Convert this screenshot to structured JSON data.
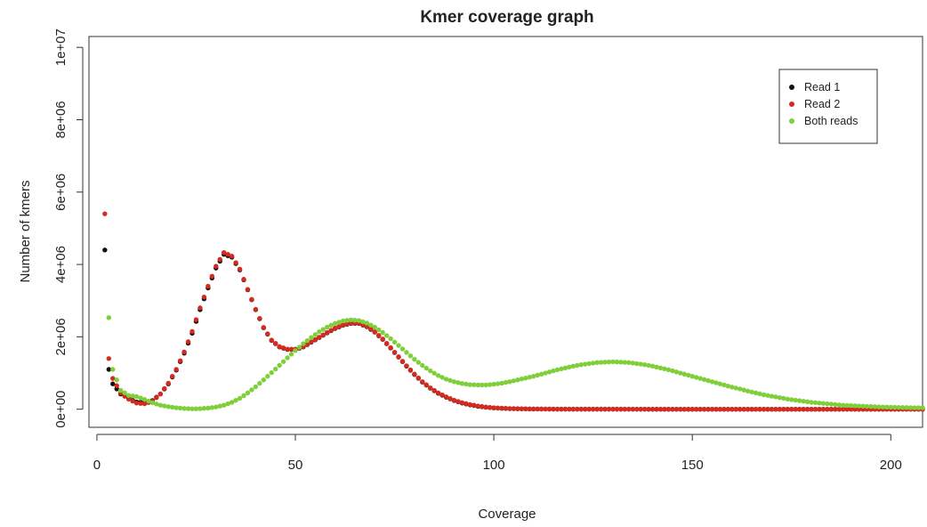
{
  "chart_data": {
    "type": "scatter",
    "title": "Kmer coverage graph",
    "xlabel": "Coverage",
    "ylabel": "Number of kmers",
    "xlim": [
      -2,
      208
    ],
    "ylim": [
      -500000,
      10300000
    ],
    "x_ticks": [
      0,
      50,
      100,
      150,
      200
    ],
    "x_tick_labels": [
      "0",
      "50",
      "100",
      "150",
      "200"
    ],
    "y_ticks": [
      0,
      2000000,
      4000000,
      6000000,
      8000000,
      10000000
    ],
    "y_tick_labels": [
      "0e+00",
      "2e+06",
      "4e+06",
      "6e+06",
      "8e+06",
      "1e+07"
    ],
    "grid": false,
    "legend_position": "top-right",
    "x_range": [
      2,
      208
    ],
    "series": [
      {
        "name": "Read 1",
        "color": "#111111",
        "points": [
          [
            2,
            4400000
          ],
          [
            3,
            1100000
          ],
          [
            4,
            700000
          ],
          [
            6,
            420000
          ],
          [
            8,
            300000
          ],
          [
            10,
            200000
          ],
          [
            12,
            180000
          ],
          [
            14,
            240000
          ],
          [
            16,
            420000
          ],
          [
            18,
            700000
          ],
          [
            20,
            1080000
          ],
          [
            22,
            1550000
          ],
          [
            24,
            2100000
          ],
          [
            26,
            2750000
          ],
          [
            28,
            3350000
          ],
          [
            30,
            3900000
          ],
          [
            32,
            4280000
          ],
          [
            34,
            4200000
          ],
          [
            36,
            3850000
          ],
          [
            38,
            3300000
          ],
          [
            40,
            2750000
          ],
          [
            42,
            2250000
          ],
          [
            44,
            1900000
          ],
          [
            46,
            1720000
          ],
          [
            48,
            1650000
          ],
          [
            50,
            1650000
          ],
          [
            52,
            1720000
          ],
          [
            54,
            1850000
          ],
          [
            56,
            1980000
          ],
          [
            58,
            2110000
          ],
          [
            60,
            2230000
          ],
          [
            62,
            2320000
          ],
          [
            64,
            2370000
          ],
          [
            66,
            2370000
          ],
          [
            68,
            2280000
          ],
          [
            70,
            2130000
          ],
          [
            72,
            1930000
          ],
          [
            74,
            1690000
          ],
          [
            76,
            1440000
          ],
          [
            78,
            1190000
          ],
          [
            80,
            960000
          ],
          [
            82,
            750000
          ],
          [
            84,
            580000
          ],
          [
            86,
            440000
          ],
          [
            88,
            330000
          ],
          [
            90,
            240000
          ],
          [
            92,
            170000
          ],
          [
            94,
            120000
          ],
          [
            96,
            80000
          ],
          [
            98,
            55000
          ],
          [
            100,
            35000
          ],
          [
            104,
            15000
          ],
          [
            110,
            5000
          ],
          [
            120,
            1500
          ],
          [
            140,
            500
          ],
          [
            160,
            300
          ],
          [
            180,
            200
          ],
          [
            200,
            100
          ],
          [
            208,
            100
          ]
        ]
      },
      {
        "name": "Read 2",
        "color": "#d42a20",
        "points": [
          [
            2,
            5400000
          ],
          [
            3,
            1400000
          ],
          [
            4,
            850000
          ],
          [
            6,
            450000
          ],
          [
            8,
            280000
          ],
          [
            10,
            170000
          ],
          [
            12,
            150000
          ],
          [
            14,
            220000
          ],
          [
            16,
            420000
          ],
          [
            18,
            720000
          ],
          [
            20,
            1100000
          ],
          [
            22,
            1580000
          ],
          [
            24,
            2150000
          ],
          [
            26,
            2800000
          ],
          [
            28,
            3400000
          ],
          [
            30,
            3950000
          ],
          [
            32,
            4330000
          ],
          [
            34,
            4230000
          ],
          [
            36,
            3870000
          ],
          [
            38,
            3310000
          ],
          [
            40,
            2760000
          ],
          [
            42,
            2260000
          ],
          [
            44,
            1910000
          ],
          [
            46,
            1730000
          ],
          [
            48,
            1660000
          ],
          [
            50,
            1660000
          ],
          [
            52,
            1730000
          ],
          [
            54,
            1860000
          ],
          [
            56,
            1990000
          ],
          [
            58,
            2120000
          ],
          [
            60,
            2240000
          ],
          [
            62,
            2330000
          ],
          [
            64,
            2380000
          ],
          [
            66,
            2380000
          ],
          [
            68,
            2290000
          ],
          [
            70,
            2140000
          ],
          [
            72,
            1940000
          ],
          [
            74,
            1700000
          ],
          [
            76,
            1450000
          ],
          [
            78,
            1200000
          ],
          [
            80,
            970000
          ],
          [
            82,
            760000
          ],
          [
            84,
            590000
          ],
          [
            86,
            450000
          ],
          [
            88,
            340000
          ],
          [
            90,
            250000
          ],
          [
            92,
            180000
          ],
          [
            94,
            130000
          ],
          [
            96,
            90000
          ],
          [
            98,
            60000
          ],
          [
            100,
            40000
          ],
          [
            104,
            18000
          ],
          [
            110,
            6000
          ],
          [
            120,
            2000
          ],
          [
            140,
            600
          ],
          [
            160,
            300
          ],
          [
            180,
            200
          ],
          [
            200,
            100
          ],
          [
            208,
            100
          ]
        ]
      },
      {
        "name": "Both reads",
        "color": "#7fcf3a",
        "points": [
          [
            3,
            2530000
          ],
          [
            4,
            1100000
          ],
          [
            6,
            520000
          ],
          [
            8,
            380000
          ],
          [
            10,
            350000
          ],
          [
            12,
            270000
          ],
          [
            14,
            180000
          ],
          [
            16,
            110000
          ],
          [
            18,
            70000
          ],
          [
            20,
            40000
          ],
          [
            22,
            20000
          ],
          [
            24,
            10000
          ],
          [
            26,
            15000
          ],
          [
            28,
            30000
          ],
          [
            30,
            60000
          ],
          [
            32,
            110000
          ],
          [
            34,
            190000
          ],
          [
            36,
            300000
          ],
          [
            38,
            450000
          ],
          [
            40,
            620000
          ],
          [
            42,
            810000
          ],
          [
            44,
            1010000
          ],
          [
            46,
            1210000
          ],
          [
            48,
            1420000
          ],
          [
            50,
            1620000
          ],
          [
            52,
            1810000
          ],
          [
            54,
            1980000
          ],
          [
            56,
            2140000
          ],
          [
            58,
            2270000
          ],
          [
            60,
            2370000
          ],
          [
            62,
            2440000
          ],
          [
            64,
            2470000
          ],
          [
            66,
            2450000
          ],
          [
            68,
            2380000
          ],
          [
            70,
            2270000
          ],
          [
            72,
            2120000
          ],
          [
            74,
            1950000
          ],
          [
            76,
            1760000
          ],
          [
            78,
            1570000
          ],
          [
            80,
            1380000
          ],
          [
            82,
            1210000
          ],
          [
            84,
            1060000
          ],
          [
            86,
            930000
          ],
          [
            88,
            830000
          ],
          [
            90,
            760000
          ],
          [
            92,
            710000
          ],
          [
            94,
            680000
          ],
          [
            96,
            670000
          ],
          [
            98,
            670000
          ],
          [
            100,
            690000
          ],
          [
            102,
            720000
          ],
          [
            104,
            760000
          ],
          [
            106,
            810000
          ],
          [
            108,
            860000
          ],
          [
            110,
            910000
          ],
          [
            112,
            970000
          ],
          [
            114,
            1030000
          ],
          [
            116,
            1090000
          ],
          [
            118,
            1140000
          ],
          [
            120,
            1190000
          ],
          [
            122,
            1230000
          ],
          [
            124,
            1260000
          ],
          [
            126,
            1290000
          ],
          [
            128,
            1300000
          ],
          [
            130,
            1310000
          ],
          [
            132,
            1300000
          ],
          [
            134,
            1290000
          ],
          [
            136,
            1260000
          ],
          [
            138,
            1230000
          ],
          [
            140,
            1190000
          ],
          [
            142,
            1140000
          ],
          [
            144,
            1090000
          ],
          [
            146,
            1030000
          ],
          [
            148,
            970000
          ],
          [
            150,
            910000
          ],
          [
            152,
            850000
          ],
          [
            154,
            790000
          ],
          [
            156,
            730000
          ],
          [
            158,
            670000
          ],
          [
            160,
            610000
          ],
          [
            162,
            560000
          ],
          [
            164,
            500000
          ],
          [
            166,
            450000
          ],
          [
            168,
            400000
          ],
          [
            170,
            360000
          ],
          [
            172,
            320000
          ],
          [
            174,
            280000
          ],
          [
            176,
            250000
          ],
          [
            178,
            220000
          ],
          [
            180,
            190000
          ],
          [
            182,
            170000
          ],
          [
            184,
            150000
          ],
          [
            186,
            130000
          ],
          [
            188,
            110000
          ],
          [
            190,
            100000
          ],
          [
            192,
            90000
          ],
          [
            194,
            80000
          ],
          [
            196,
            70000
          ],
          [
            198,
            60000
          ],
          [
            200,
            55000
          ],
          [
            202,
            50000
          ],
          [
            204,
            45000
          ],
          [
            206,
            40000
          ],
          [
            208,
            38000
          ]
        ]
      }
    ]
  }
}
